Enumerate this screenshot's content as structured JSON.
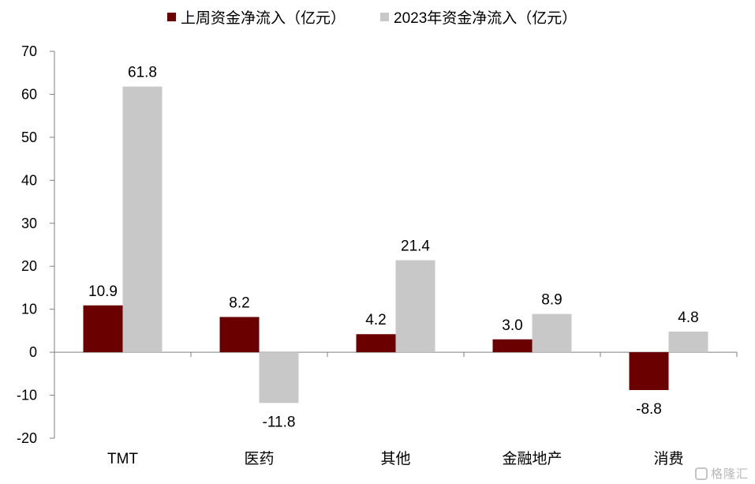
{
  "chart_data": {
    "type": "bar",
    "title": "",
    "xlabel": "",
    "ylabel": "",
    "categories": [
      "TMT",
      "医药",
      "其他",
      "金融地产",
      "消费"
    ],
    "series": [
      {
        "name": "上周资金净流入（亿元）",
        "color": "#6b0000",
        "values": [
          10.9,
          8.2,
          4.2,
          3.0,
          -8.8
        ],
        "labels": [
          "10.9",
          "8.2",
          "4.2",
          "3.0",
          "-8.8"
        ]
      },
      {
        "name": "2023年资金净流入（亿元）",
        "color": "#c8c8c8",
        "values": [
          61.8,
          -11.8,
          21.4,
          8.9,
          4.8
        ],
        "labels": [
          "61.8",
          "-11.8",
          "21.4",
          "8.9",
          "4.8"
        ]
      }
    ],
    "ylim": [
      -20,
      70
    ],
    "yticks": [
      "70",
      "60",
      "50",
      "40",
      "30",
      "20",
      "10",
      "0",
      "-10",
      "-20"
    ],
    "grid": false,
    "legend_position": "top"
  },
  "watermark": {
    "text": "格隆汇",
    "icon": "gelonghui-logo-icon"
  }
}
